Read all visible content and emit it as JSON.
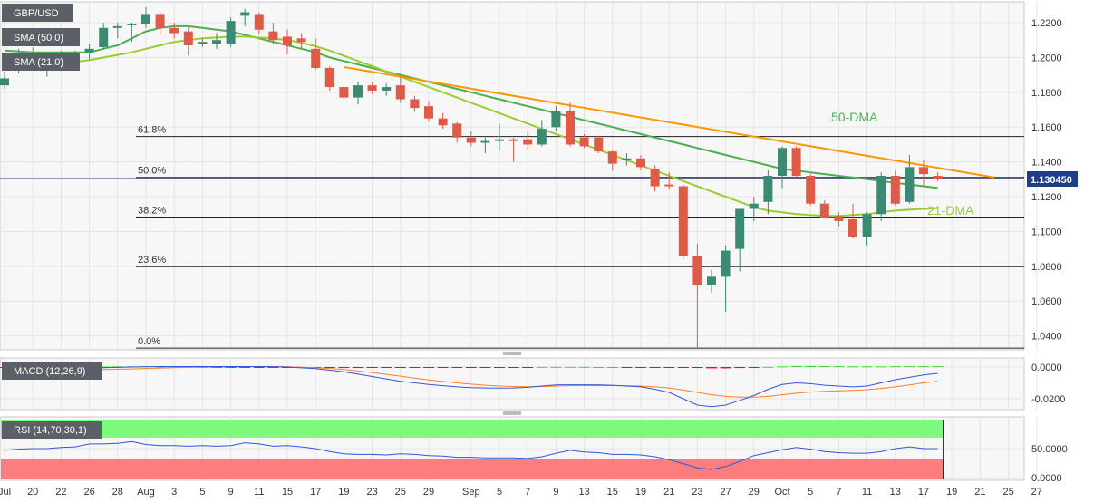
{
  "legends": {
    "symbol": "GBP/USD",
    "sma50": "SMA (50,0)",
    "sma21": "SMA (21,0)",
    "macd": "MACD (12,26,9)",
    "rsi": "RSI (14,70,30,1)"
  },
  "colors": {
    "bull": "#3a8a74",
    "bear": "#e05a48",
    "sma50": "#4caf50",
    "sma21": "#9acd32",
    "trendline": "#ff9800",
    "macd_line": "#3355dd",
    "signal_line": "#ff7f2a",
    "hist_pos": "#33dd33",
    "hist_neg": "#ee1111",
    "rsi_line": "#3355dd",
    "rsi_over": "#7dfa7d",
    "rsi_under": "#fb7d7d",
    "price_tag": "#1f3c88"
  },
  "current_price": {
    "label": "1.130450",
    "value": 1.13045
  },
  "annotations": {
    "dma50": "50-DMA",
    "dma21": "21-DMA"
  },
  "chart_data": {
    "type": "candlestick",
    "price_axis": {
      "ylim": [
        1.032,
        1.232
      ],
      "ticks": [
        "1.0400",
        "1.0600",
        "1.0800",
        "1.1000",
        "1.1200",
        "1.1400",
        "1.1600",
        "1.1800",
        "1.2000",
        "1.2200"
      ]
    },
    "macd_axis": {
      "ticks": [
        "0.0000",
        "-0.0200"
      ]
    },
    "rsi_axis": {
      "ticks": [
        "50.0000",
        "0.0000"
      ]
    },
    "x_labels": [
      {
        "i": 0,
        "t": "Jul"
      },
      {
        "i": 2,
        "t": "20"
      },
      {
        "i": 4,
        "t": "22"
      },
      {
        "i": 6,
        "t": "26"
      },
      {
        "i": 8,
        "t": "28"
      },
      {
        "i": 10,
        "t": "Aug"
      },
      {
        "i": 12,
        "t": "3"
      },
      {
        "i": 14,
        "t": "5"
      },
      {
        "i": 16,
        "t": "9"
      },
      {
        "i": 18,
        "t": "11"
      },
      {
        "i": 20,
        "t": "15"
      },
      {
        "i": 22,
        "t": "17"
      },
      {
        "i": 24,
        "t": "19"
      },
      {
        "i": 26,
        "t": "23"
      },
      {
        "i": 28,
        "t": "25"
      },
      {
        "i": 30,
        "t": "29"
      },
      {
        "i": 33,
        "t": "Sep"
      },
      {
        "i": 35,
        "t": "5"
      },
      {
        "i": 37,
        "t": "7"
      },
      {
        "i": 39,
        "t": "9"
      },
      {
        "i": 41,
        "t": "13"
      },
      {
        "i": 43,
        "t": "15"
      },
      {
        "i": 45,
        "t": "19"
      },
      {
        "i": 47,
        "t": "21"
      },
      {
        "i": 49,
        "t": "23"
      },
      {
        "i": 51,
        "t": "27"
      },
      {
        "i": 53,
        "t": "29"
      },
      {
        "i": 55,
        "t": "Oct"
      },
      {
        "i": 57,
        "t": "5"
      },
      {
        "i": 59,
        "t": "7"
      },
      {
        "i": 61,
        "t": "11"
      },
      {
        "i": 63,
        "t": "13"
      },
      {
        "i": 65,
        "t": "17"
      },
      {
        "i": 67,
        "t": "19"
      },
      {
        "i": 69,
        "t": "21"
      },
      {
        "i": 71,
        "t": "25"
      },
      {
        "i": 73,
        "t": "27"
      }
    ],
    "fib_levels": [
      {
        "label": "61.8%",
        "value": 1.1546
      },
      {
        "label": "50.0%",
        "value": 1.1311
      },
      {
        "label": "38.2%",
        "value": 1.1083
      },
      {
        "label": "23.6%",
        "value": 1.0798
      },
      {
        "label": "0.0%",
        "value": 1.033
      }
    ],
    "candles": [
      {
        "o": 1.184,
        "h": 1.192,
        "l": 1.182,
        "c": 1.188
      },
      {
        "o": 1.196,
        "h": 1.205,
        "l": 1.191,
        "c": 1.202
      },
      {
        "o": 1.202,
        "h": 1.206,
        "l": 1.195,
        "c": 1.199
      },
      {
        "o": 1.199,
        "h": 1.203,
        "l": 1.189,
        "c": 1.2
      },
      {
        "o": 1.2,
        "h": 1.204,
        "l": 1.193,
        "c": 1.196
      },
      {
        "o": 1.198,
        "h": 1.204,
        "l": 1.195,
        "c": 1.202
      },
      {
        "o": 1.203,
        "h": 1.208,
        "l": 1.199,
        "c": 1.205
      },
      {
        "o": 1.206,
        "h": 1.22,
        "l": 1.205,
        "c": 1.217
      },
      {
        "o": 1.217,
        "h": 1.22,
        "l": 1.211,
        "c": 1.218
      },
      {
        "o": 1.219,
        "h": 1.22,
        "l": 1.209,
        "c": 1.219
      },
      {
        "o": 1.219,
        "h": 1.229,
        "l": 1.217,
        "c": 1.225
      },
      {
        "o": 1.225,
        "h": 1.226,
        "l": 1.213,
        "c": 1.217
      },
      {
        "o": 1.217,
        "h": 1.22,
        "l": 1.211,
        "c": 1.214
      },
      {
        "o": 1.215,
        "h": 1.218,
        "l": 1.201,
        "c": 1.207
      },
      {
        "o": 1.208,
        "h": 1.211,
        "l": 1.206,
        "c": 1.209
      },
      {
        "o": 1.208,
        "h": 1.214,
        "l": 1.205,
        "c": 1.21
      },
      {
        "o": 1.208,
        "h": 1.223,
        "l": 1.206,
        "c": 1.221
      },
      {
        "o": 1.224,
        "h": 1.228,
        "l": 1.218,
        "c": 1.226
      },
      {
        "o": 1.225,
        "h": 1.226,
        "l": 1.213,
        "c": 1.216
      },
      {
        "o": 1.215,
        "h": 1.22,
        "l": 1.208,
        "c": 1.21
      },
      {
        "o": 1.212,
        "h": 1.216,
        "l": 1.202,
        "c": 1.207
      },
      {
        "o": 1.211,
        "h": 1.214,
        "l": 1.205,
        "c": 1.209
      },
      {
        "o": 1.205,
        "h": 1.211,
        "l": 1.193,
        "c": 1.194
      },
      {
        "o": 1.194,
        "h": 1.195,
        "l": 1.181,
        "c": 1.183
      },
      {
        "o": 1.183,
        "h": 1.184,
        "l": 1.176,
        "c": 1.177
      },
      {
        "o": 1.177,
        "h": 1.186,
        "l": 1.173,
        "c": 1.184
      },
      {
        "o": 1.184,
        "h": 1.186,
        "l": 1.179,
        "c": 1.181
      },
      {
        "o": 1.181,
        "h": 1.185,
        "l": 1.178,
        "c": 1.183
      },
      {
        "o": 1.184,
        "h": 1.19,
        "l": 1.174,
        "c": 1.176
      },
      {
        "o": 1.176,
        "h": 1.178,
        "l": 1.169,
        "c": 1.171
      },
      {
        "o": 1.172,
        "h": 1.175,
        "l": 1.163,
        "c": 1.165
      },
      {
        "o": 1.165,
        "h": 1.168,
        "l": 1.159,
        "c": 1.161
      },
      {
        "o": 1.162,
        "h": 1.163,
        "l": 1.151,
        "c": 1.154
      },
      {
        "o": 1.154,
        "h": 1.158,
        "l": 1.149,
        "c": 1.151
      },
      {
        "o": 1.151,
        "h": 1.154,
        "l": 1.145,
        "c": 1.152
      },
      {
        "o": 1.152,
        "h": 1.162,
        "l": 1.147,
        "c": 1.153
      },
      {
        "o": 1.153,
        "h": 1.154,
        "l": 1.14,
        "c": 1.152
      },
      {
        "o": 1.153,
        "h": 1.158,
        "l": 1.147,
        "c": 1.15
      },
      {
        "o": 1.15,
        "h": 1.164,
        "l": 1.149,
        "c": 1.159
      },
      {
        "o": 1.16,
        "h": 1.172,
        "l": 1.158,
        "c": 1.169
      },
      {
        "o": 1.169,
        "h": 1.174,
        "l": 1.149,
        "c": 1.15
      },
      {
        "o": 1.154,
        "h": 1.156,
        "l": 1.148,
        "c": 1.149
      },
      {
        "o": 1.154,
        "h": 1.155,
        "l": 1.145,
        "c": 1.146
      },
      {
        "o": 1.146,
        "h": 1.147,
        "l": 1.135,
        "c": 1.139
      },
      {
        "o": 1.141,
        "h": 1.145,
        "l": 1.138,
        "c": 1.142
      },
      {
        "o": 1.142,
        "h": 1.144,
        "l": 1.135,
        "c": 1.137
      },
      {
        "o": 1.136,
        "h": 1.138,
        "l": 1.123,
        "c": 1.126
      },
      {
        "o": 1.127,
        "h": 1.134,
        "l": 1.124,
        "c": 1.126
      },
      {
        "o": 1.126,
        "h": 1.127,
        "l": 1.084,
        "c": 1.086
      },
      {
        "o": 1.086,
        "h": 1.093,
        "l": 1.033,
        "c": 1.069
      },
      {
        "o": 1.069,
        "h": 1.078,
        "l": 1.065,
        "c": 1.074
      },
      {
        "o": 1.074,
        "h": 1.092,
        "l": 1.054,
        "c": 1.089
      },
      {
        "o": 1.09,
        "h": 1.113,
        "l": 1.077,
        "c": 1.113
      },
      {
        "o": 1.113,
        "h": 1.12,
        "l": 1.106,
        "c": 1.116
      },
      {
        "o": 1.117,
        "h": 1.135,
        "l": 1.11,
        "c": 1.132
      },
      {
        "o": 1.132,
        "h": 1.149,
        "l": 1.125,
        "c": 1.148
      },
      {
        "o": 1.148,
        "h": 1.149,
        "l": 1.131,
        "c": 1.132
      },
      {
        "o": 1.132,
        "h": 1.133,
        "l": 1.115,
        "c": 1.116
      },
      {
        "o": 1.116,
        "h": 1.118,
        "l": 1.108,
        "c": 1.108
      },
      {
        "o": 1.109,
        "h": 1.111,
        "l": 1.103,
        "c": 1.106
      },
      {
        "o": 1.107,
        "h": 1.116,
        "l": 1.096,
        "c": 1.097
      },
      {
        "o": 1.097,
        "h": 1.111,
        "l": 1.092,
        "c": 1.11
      },
      {
        "o": 1.11,
        "h": 1.134,
        "l": 1.106,
        "c": 1.132
      },
      {
        "o": 1.132,
        "h": 1.135,
        "l": 1.115,
        "c": 1.116
      },
      {
        "o": 1.117,
        "h": 1.144,
        "l": 1.116,
        "c": 1.137
      },
      {
        "o": 1.137,
        "h": 1.141,
        "l": 1.126,
        "c": 1.133
      },
      {
        "o": 1.132,
        "h": 1.134,
        "l": 1.129,
        "c": 1.1305
      }
    ],
    "sma50": [
      1.204,
      1.2035,
      1.203,
      1.203,
      1.203,
      1.203,
      1.203,
      1.205,
      1.207,
      1.211,
      1.215,
      1.217,
      1.218,
      1.218,
      1.217,
      1.216,
      1.215,
      1.213,
      1.211,
      1.209,
      1.207,
      1.205,
      1.203,
      1.2,
      1.198,
      1.196,
      1.194,
      1.192,
      1.19,
      1.188,
      1.186,
      1.184,
      1.182,
      1.18,
      1.178,
      1.176,
      1.174,
      1.172,
      1.17,
      1.168,
      1.166,
      1.164,
      1.162,
      1.16,
      1.158,
      1.156,
      1.154,
      1.152,
      1.15,
      1.148,
      1.146,
      1.144,
      1.142,
      1.14,
      1.138,
      1.136,
      1.135,
      1.134,
      1.133,
      1.132,
      1.131,
      1.13,
      1.129,
      1.128,
      1.127,
      1.126,
      1.125
    ],
    "sma21": [
      1.195,
      1.1955,
      1.196,
      1.1965,
      1.197,
      1.1975,
      1.1985,
      1.2,
      1.2015,
      1.203,
      1.205,
      1.207,
      1.209,
      1.21,
      1.211,
      1.2115,
      1.212,
      1.212,
      1.2115,
      1.211,
      1.21,
      1.2085,
      1.2065,
      1.204,
      1.201,
      1.198,
      1.195,
      1.192,
      1.189,
      1.186,
      1.183,
      1.18,
      1.177,
      1.174,
      1.171,
      1.168,
      1.165,
      1.162,
      1.159,
      1.156,
      1.153,
      1.15,
      1.147,
      1.144,
      1.141,
      1.138,
      1.135,
      1.132,
      1.129,
      1.126,
      1.123,
      1.12,
      1.117,
      1.114,
      1.112,
      1.111,
      1.11,
      1.1095,
      1.109,
      1.109,
      1.1095,
      1.11,
      1.111,
      1.112,
      1.1125,
      1.113,
      1.1135
    ],
    "trendline": [
      {
        "i": 24,
        "v": 1.1945
      },
      {
        "i": 70,
        "v": 1.1311
      }
    ],
    "macd": {
      "hist": [
        -0.0003,
        -0.0004,
        -0.0004,
        -0.0003,
        -0.0002,
        -0.0001,
        0.0001,
        0.0003,
        0.0004,
        0.0004,
        0.0004,
        0.0003,
        0.0002,
        0.0001,
        0.0,
        -0.0001,
        -0.0001,
        -0.0001,
        -0.0001,
        -0.0001,
        -0.0002,
        -0.0003,
        -0.0004,
        -0.0005,
        -0.0006,
        -0.0006,
        -0.0005,
        -0.0005,
        -0.0004,
        -0.0004,
        -0.0003,
        -0.0003,
        -0.0002,
        -0.0002,
        -0.0002,
        -0.0001,
        -0.0001,
        -0.0001,
        0.0001,
        0.0001,
        0.0001,
        0.0001,
        0.0,
        0.0,
        -0.0001,
        -0.0001,
        -0.0001,
        -0.0002,
        -0.0003,
        -0.0006,
        -0.0008,
        -0.0008,
        -0.0006,
        -0.0003,
        0.0001,
        0.0004,
        0.0006,
        0.0006,
        0.0006,
        0.0005,
        0.0004,
        0.0004,
        0.0004,
        0.0005,
        0.0005,
        0.0005,
        0.0005
      ],
      "macd_line": [
        -0.0018,
        -0.0016,
        -0.0014,
        -0.0012,
        -0.001,
        -0.0008,
        -0.0006,
        -0.0004,
        -0.0002,
        0.0,
        0.0002,
        0.0003,
        0.0003,
        0.0003,
        0.0003,
        0.0003,
        0.0003,
        0.0003,
        0.0003,
        0.0002,
        0.0,
        -0.0005,
        -0.001,
        -0.002,
        -0.003,
        -0.0045,
        -0.006,
        -0.0075,
        -0.009,
        -0.01,
        -0.011,
        -0.0118,
        -0.0125,
        -0.013,
        -0.0132,
        -0.0133,
        -0.0132,
        -0.0128,
        -0.012,
        -0.0113,
        -0.0112,
        -0.0112,
        -0.0113,
        -0.0115,
        -0.012,
        -0.0125,
        -0.014,
        -0.016,
        -0.02,
        -0.024,
        -0.025,
        -0.024,
        -0.021,
        -0.018,
        -0.014,
        -0.011,
        -0.01,
        -0.0105,
        -0.0115,
        -0.012,
        -0.0125,
        -0.012,
        -0.01,
        -0.008,
        -0.0065,
        -0.005,
        -0.004
      ],
      "signal_line": [
        -0.0025,
        -0.0024,
        -0.0023,
        -0.0022,
        -0.0021,
        -0.002,
        -0.0018,
        -0.0016,
        -0.0014,
        -0.0012,
        -0.0009,
        -0.0006,
        -0.0004,
        -0.0002,
        -0.0001,
        0.0,
        0.0001,
        0.0001,
        0.0002,
        0.0002,
        0.0001,
        -0.0001,
        -0.0004,
        -0.0009,
        -0.0016,
        -0.0025,
        -0.0035,
        -0.0046,
        -0.0058,
        -0.007,
        -0.0081,
        -0.0091,
        -0.01,
        -0.0108,
        -0.0115,
        -0.012,
        -0.0123,
        -0.0124,
        -0.0123,
        -0.012,
        -0.0118,
        -0.0117,
        -0.0117,
        -0.0117,
        -0.0118,
        -0.012,
        -0.0125,
        -0.0132,
        -0.0145,
        -0.016,
        -0.0175,
        -0.0185,
        -0.019,
        -0.019,
        -0.0185,
        -0.0175,
        -0.0165,
        -0.0158,
        -0.0153,
        -0.015,
        -0.0147,
        -0.0143,
        -0.0135,
        -0.0125,
        -0.0113,
        -0.01,
        -0.009
      ]
    },
    "rsi": {
      "values": [
        47,
        49,
        50,
        50,
        52,
        53,
        58,
        58,
        59,
        62,
        57,
        55,
        55,
        54,
        55,
        54,
        55,
        60,
        58,
        54,
        55,
        53,
        50,
        45,
        41,
        40,
        40,
        39,
        41,
        40,
        38,
        37,
        35,
        35,
        34,
        34,
        34,
        33,
        36,
        42,
        47,
        44,
        43,
        40,
        40,
        39,
        36,
        31,
        24,
        17,
        14,
        19,
        28,
        38,
        43,
        48,
        52,
        49,
        45,
        43,
        42,
        42,
        45,
        50,
        53,
        50,
        50
      ],
      "overbought": 70,
      "oversold": 30
    }
  }
}
